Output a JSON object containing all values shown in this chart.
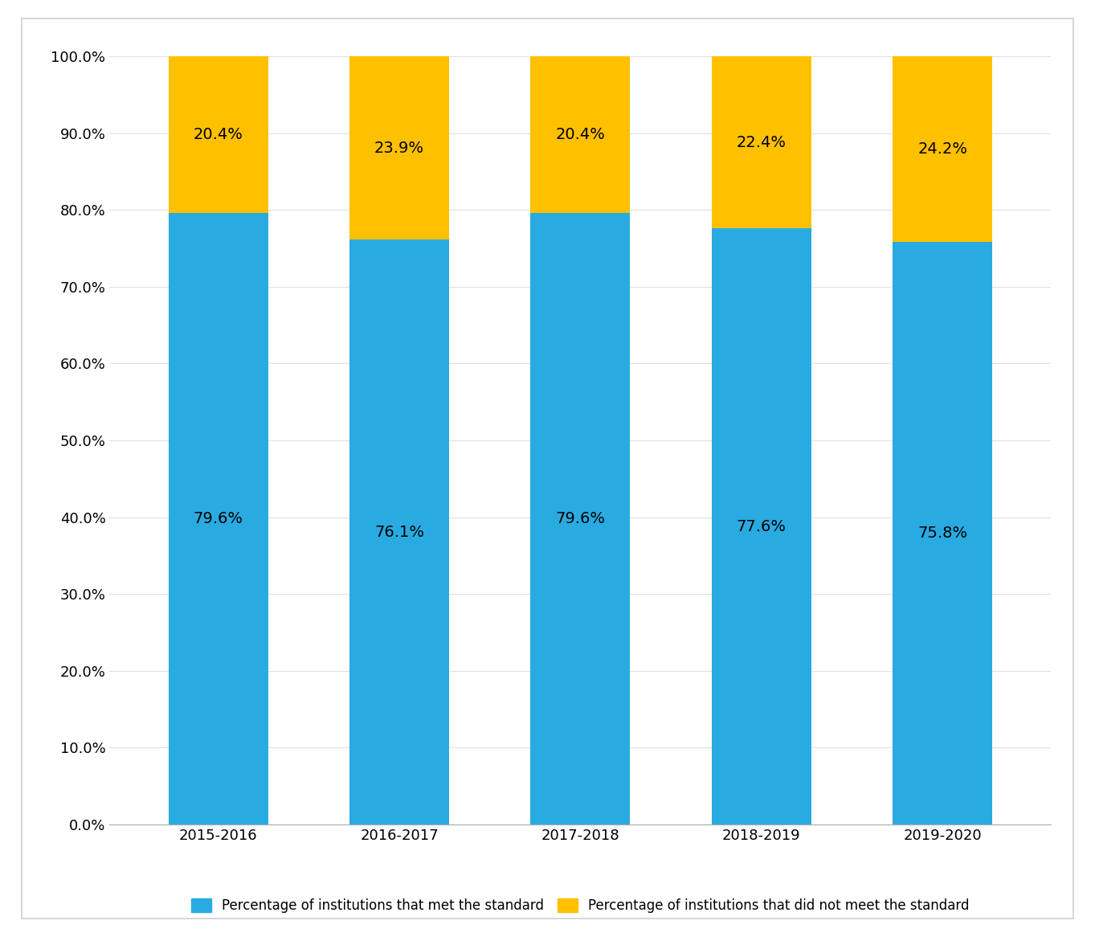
{
  "categories": [
    "2015-2016",
    "2016-2017",
    "2017-2018",
    "2018-2019",
    "2019-2020"
  ],
  "met_values": [
    79.6,
    76.1,
    79.6,
    77.6,
    75.8
  ],
  "not_met_values": [
    20.4,
    23.9,
    20.4,
    22.4,
    24.2
  ],
  "met_color": "#29ABE2",
  "not_met_color": "#FFC000",
  "met_label": "Percentage of institutions that met the standard",
  "not_met_label": "Percentage of institutions that did not meet the standard",
  "ylim": [
    0,
    100
  ],
  "ytick_labels": [
    "0.0%",
    "10.0%",
    "20.0%",
    "30.0%",
    "40.0%",
    "50.0%",
    "60.0%",
    "70.0%",
    "80.0%",
    "90.0%",
    "100.0%"
  ],
  "ytick_values": [
    0,
    10,
    20,
    30,
    40,
    50,
    60,
    70,
    80,
    90,
    100
  ],
  "bar_width": 0.55,
  "background_color": "#ffffff",
  "label_fontsize": 14,
  "tick_fontsize": 13,
  "legend_fontsize": 12,
  "border_color": "#D0D0D0"
}
